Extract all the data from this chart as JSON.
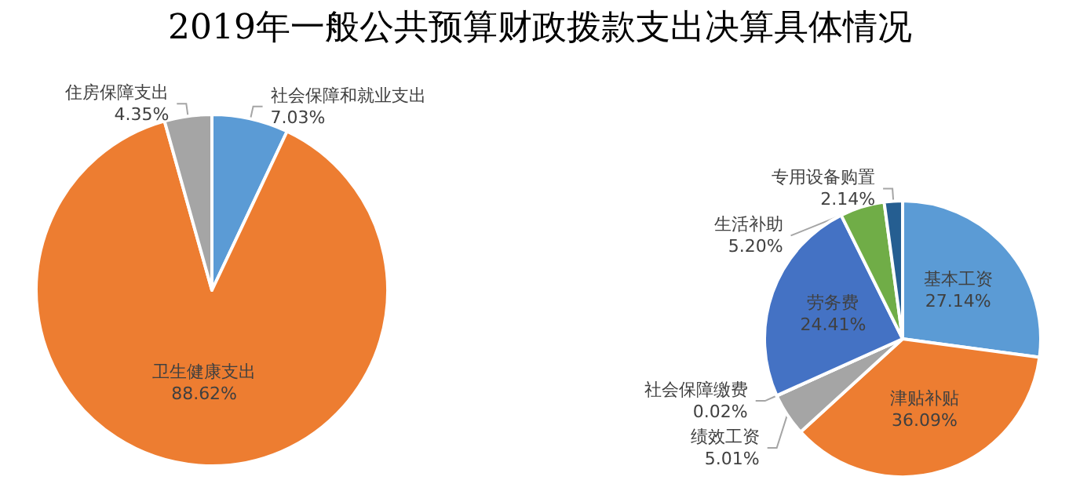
{
  "chart_data": [
    {
      "type": "pie",
      "title": "2019年一般公共预算财政拨款支出决算具体情况",
      "categories": [
        "社会保障和就业支出",
        "卫生健康支出",
        "住房保障支出"
      ],
      "values": [
        7.03,
        88.62,
        4.35
      ],
      "colors": [
        "#5b9bd5",
        "#ed7d31",
        "#a5a5a5"
      ],
      "value_labels": [
        "7.03%",
        "88.62%",
        "4.35%"
      ],
      "legend": false
    },
    {
      "type": "pie",
      "categories": [
        "基本工资",
        "津贴补贴",
        "绩效工资",
        "社会保障缴费",
        "劳务费",
        "生活补助",
        "专用设备购置"
      ],
      "values": [
        27.14,
        36.09,
        5.01,
        0.02,
        24.41,
        5.2,
        2.14
      ],
      "colors": [
        "#5b9bd5",
        "#ed7d31",
        "#a5a5a5",
        "#ffc000",
        "#4472c4",
        "#70ad47",
        "#255e91"
      ],
      "value_labels": [
        "27.14%",
        "36.09%",
        "5.01%",
        "0.02%",
        "24.41%",
        "5.20%",
        "2.14%"
      ],
      "legend": false
    }
  ]
}
